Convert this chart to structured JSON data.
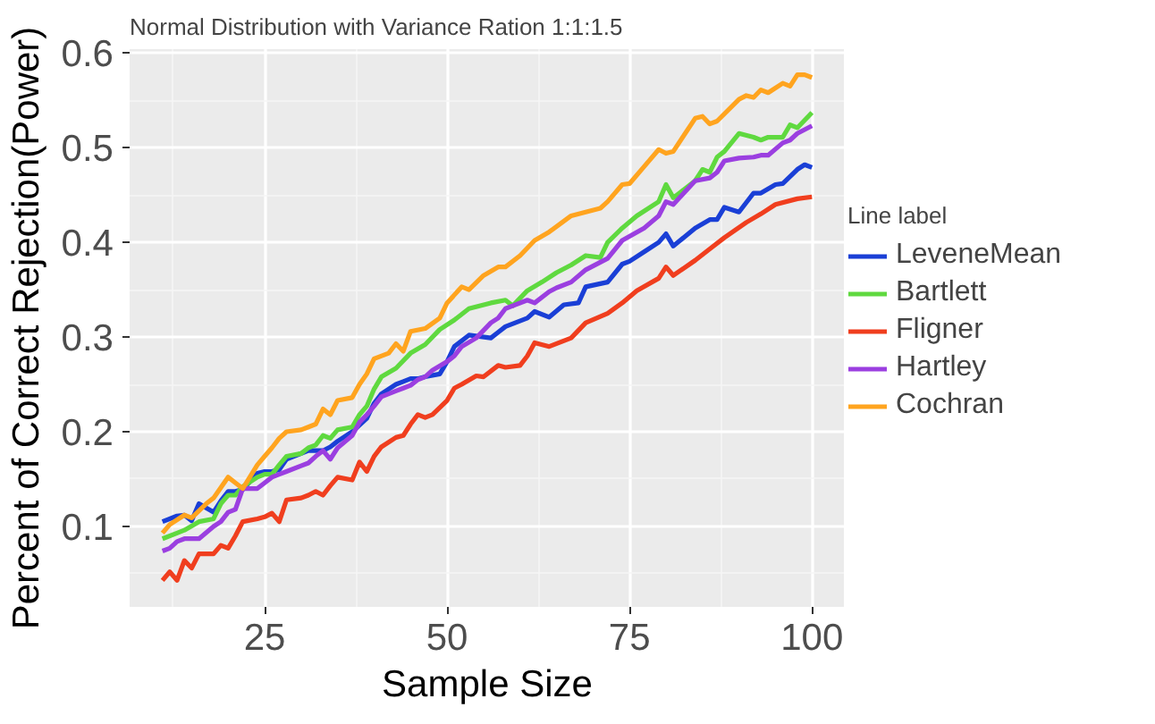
{
  "chart_data": {
    "type": "line",
    "title": "Normal Distribution with Variance Ration 1:1:1.5",
    "xlabel": "Sample Size",
    "ylabel": "Percent of Correct Rejection(Power)",
    "legend_title": "Line label",
    "legend": "right",
    "grid": true,
    "line_style": "solid",
    "marker": "none",
    "xlim": [
      6.5,
      104.5
    ],
    "xticks": [
      25,
      50,
      75,
      100
    ],
    "ylim": [
      0.015,
      0.604
    ],
    "yticks": [
      0.1,
      0.2,
      0.3,
      0.4,
      0.5,
      0.6
    ],
    "series": [
      {
        "name": "LeveneMean",
        "color": "#1a3fd6",
        "x": [
          11,
          13,
          14,
          15,
          16,
          18,
          19,
          20,
          21,
          22,
          24,
          25,
          26,
          27,
          28,
          30,
          31,
          32,
          33,
          34,
          35,
          37,
          39,
          40,
          41,
          43,
          44,
          45,
          46,
          47,
          49,
          50,
          51,
          53,
          56,
          57,
          58,
          61,
          62,
          64,
          66,
          68,
          69,
          72,
          74,
          75,
          77,
          79,
          80,
          81,
          84,
          86,
          87,
          88,
          90,
          92,
          93,
          95,
          96,
          98,
          99,
          100
        ],
        "values": [
          0.105,
          0.111,
          0.112,
          0.106,
          0.124,
          0.115,
          0.127,
          0.137,
          0.137,
          0.139,
          0.156,
          0.158,
          0.158,
          0.16,
          0.171,
          0.177,
          0.18,
          0.18,
          0.18,
          0.184,
          0.19,
          0.2,
          0.214,
          0.23,
          0.24,
          0.25,
          0.253,
          0.256,
          0.256,
          0.258,
          0.261,
          0.274,
          0.29,
          0.302,
          0.299,
          0.305,
          0.311,
          0.32,
          0.327,
          0.321,
          0.334,
          0.336,
          0.353,
          0.358,
          0.377,
          0.38,
          0.39,
          0.4,
          0.409,
          0.396,
          0.415,
          0.424,
          0.424,
          0.437,
          0.432,
          0.452,
          0.452,
          0.461,
          0.462,
          0.477,
          0.482,
          0.479
        ]
      },
      {
        "name": "Bartlett",
        "color": "#5fd93f",
        "x": [
          11,
          13,
          14,
          16,
          18,
          19,
          20,
          21,
          22,
          24,
          25,
          26,
          27,
          28,
          30,
          31,
          32,
          33,
          34,
          35,
          37,
          38,
          39,
          40,
          41,
          43,
          45,
          47,
          49,
          51,
          53,
          56,
          58,
          59,
          61,
          63,
          65,
          67,
          69,
          71,
          72,
          74,
          76,
          79,
          80,
          81,
          82,
          84,
          85,
          86,
          87,
          88,
          90,
          92,
          93,
          94,
          96,
          97,
          98,
          100
        ],
        "values": [
          0.087,
          0.093,
          0.096,
          0.105,
          0.108,
          0.124,
          0.133,
          0.133,
          0.142,
          0.152,
          0.155,
          0.155,
          0.165,
          0.174,
          0.177,
          0.183,
          0.186,
          0.196,
          0.193,
          0.202,
          0.205,
          0.218,
          0.227,
          0.245,
          0.258,
          0.267,
          0.283,
          0.292,
          0.308,
          0.318,
          0.33,
          0.336,
          0.339,
          0.333,
          0.349,
          0.358,
          0.368,
          0.376,
          0.386,
          0.384,
          0.4,
          0.415,
          0.428,
          0.443,
          0.461,
          0.447,
          0.453,
          0.465,
          0.477,
          0.474,
          0.49,
          0.496,
          0.515,
          0.511,
          0.508,
          0.511,
          0.511,
          0.524,
          0.521,
          0.537
        ]
      },
      {
        "name": "Fligner",
        "color": "#f03e1e",
        "x": [
          11,
          12,
          13,
          14,
          15,
          16,
          18,
          19,
          20,
          21,
          22,
          24,
          25,
          26,
          27,
          28,
          30,
          31,
          32,
          33,
          34,
          35,
          37,
          38,
          39,
          40,
          41,
          43,
          44,
          45,
          46,
          47,
          48,
          50,
          51,
          52,
          54,
          55,
          57,
          58,
          60,
          61,
          62,
          64,
          67,
          69,
          72,
          74,
          76,
          79,
          80,
          81,
          84,
          86,
          88,
          91,
          93,
          95,
          98,
          100
        ],
        "values": [
          0.043,
          0.052,
          0.043,
          0.064,
          0.056,
          0.071,
          0.071,
          0.08,
          0.077,
          0.09,
          0.105,
          0.108,
          0.11,
          0.114,
          0.105,
          0.128,
          0.13,
          0.133,
          0.137,
          0.133,
          0.143,
          0.152,
          0.149,
          0.168,
          0.158,
          0.174,
          0.184,
          0.194,
          0.196,
          0.208,
          0.218,
          0.215,
          0.218,
          0.233,
          0.246,
          0.25,
          0.259,
          0.258,
          0.27,
          0.268,
          0.27,
          0.28,
          0.294,
          0.29,
          0.299,
          0.315,
          0.325,
          0.336,
          0.349,
          0.362,
          0.374,
          0.365,
          0.381,
          0.393,
          0.405,
          0.421,
          0.43,
          0.44,
          0.446,
          0.448
        ]
      },
      {
        "name": "Hartley",
        "color": "#9b3fe0",
        "x": [
          11,
          12,
          13,
          14,
          16,
          18,
          19,
          20,
          21,
          22,
          24,
          25,
          26,
          27,
          28,
          30,
          31,
          32,
          33,
          34,
          35,
          37,
          38,
          39,
          40,
          41,
          43,
          44,
          45,
          46,
          47,
          48,
          50,
          51,
          52,
          54,
          56,
          57,
          58,
          59,
          61,
          62,
          64,
          65,
          67,
          69,
          72,
          74,
          77,
          79,
          80,
          81,
          84,
          86,
          87,
          88,
          90,
          92,
          93,
          94,
          96,
          97,
          98,
          100
        ],
        "values": [
          0.074,
          0.077,
          0.084,
          0.087,
          0.087,
          0.1,
          0.105,
          0.115,
          0.118,
          0.14,
          0.14,
          0.146,
          0.152,
          0.155,
          0.158,
          0.164,
          0.167,
          0.174,
          0.18,
          0.171,
          0.183,
          0.196,
          0.21,
          0.218,
          0.227,
          0.237,
          0.243,
          0.246,
          0.249,
          0.255,
          0.258,
          0.265,
          0.274,
          0.28,
          0.29,
          0.299,
          0.315,
          0.32,
          0.33,
          0.333,
          0.339,
          0.336,
          0.348,
          0.352,
          0.358,
          0.371,
          0.383,
          0.402,
          0.415,
          0.428,
          0.443,
          0.44,
          0.465,
          0.468,
          0.474,
          0.486,
          0.489,
          0.49,
          0.492,
          0.492,
          0.505,
          0.508,
          0.515,
          0.523
        ]
      },
      {
        "name": "Cochran",
        "color": "#ffa41f",
        "x": [
          11,
          12,
          14,
          15,
          17,
          18,
          20,
          21,
          22,
          24,
          25,
          26,
          27,
          28,
          30,
          31,
          32,
          33,
          34,
          35,
          37,
          38,
          39,
          40,
          42,
          43,
          44,
          45,
          47,
          49,
          50,
          52,
          53,
          55,
          57,
          58,
          60,
          62,
          64,
          67,
          69,
          71,
          72,
          74,
          75,
          77,
          79,
          80,
          81,
          84,
          85,
          86,
          87,
          90,
          91,
          92,
          93,
          94,
          96,
          97,
          98,
          99,
          100
        ],
        "values": [
          0.093,
          0.102,
          0.112,
          0.109,
          0.124,
          0.13,
          0.152,
          0.146,
          0.14,
          0.165,
          0.174,
          0.183,
          0.193,
          0.2,
          0.202,
          0.205,
          0.208,
          0.224,
          0.218,
          0.233,
          0.236,
          0.25,
          0.261,
          0.277,
          0.283,
          0.293,
          0.285,
          0.306,
          0.309,
          0.32,
          0.336,
          0.353,
          0.35,
          0.365,
          0.374,
          0.374,
          0.386,
          0.402,
          0.411,
          0.428,
          0.432,
          0.436,
          0.443,
          0.461,
          0.462,
          0.48,
          0.498,
          0.494,
          0.496,
          0.531,
          0.533,
          0.525,
          0.528,
          0.551,
          0.555,
          0.553,
          0.561,
          0.558,
          0.568,
          0.565,
          0.577,
          0.577,
          0.574
        ]
      }
    ]
  }
}
